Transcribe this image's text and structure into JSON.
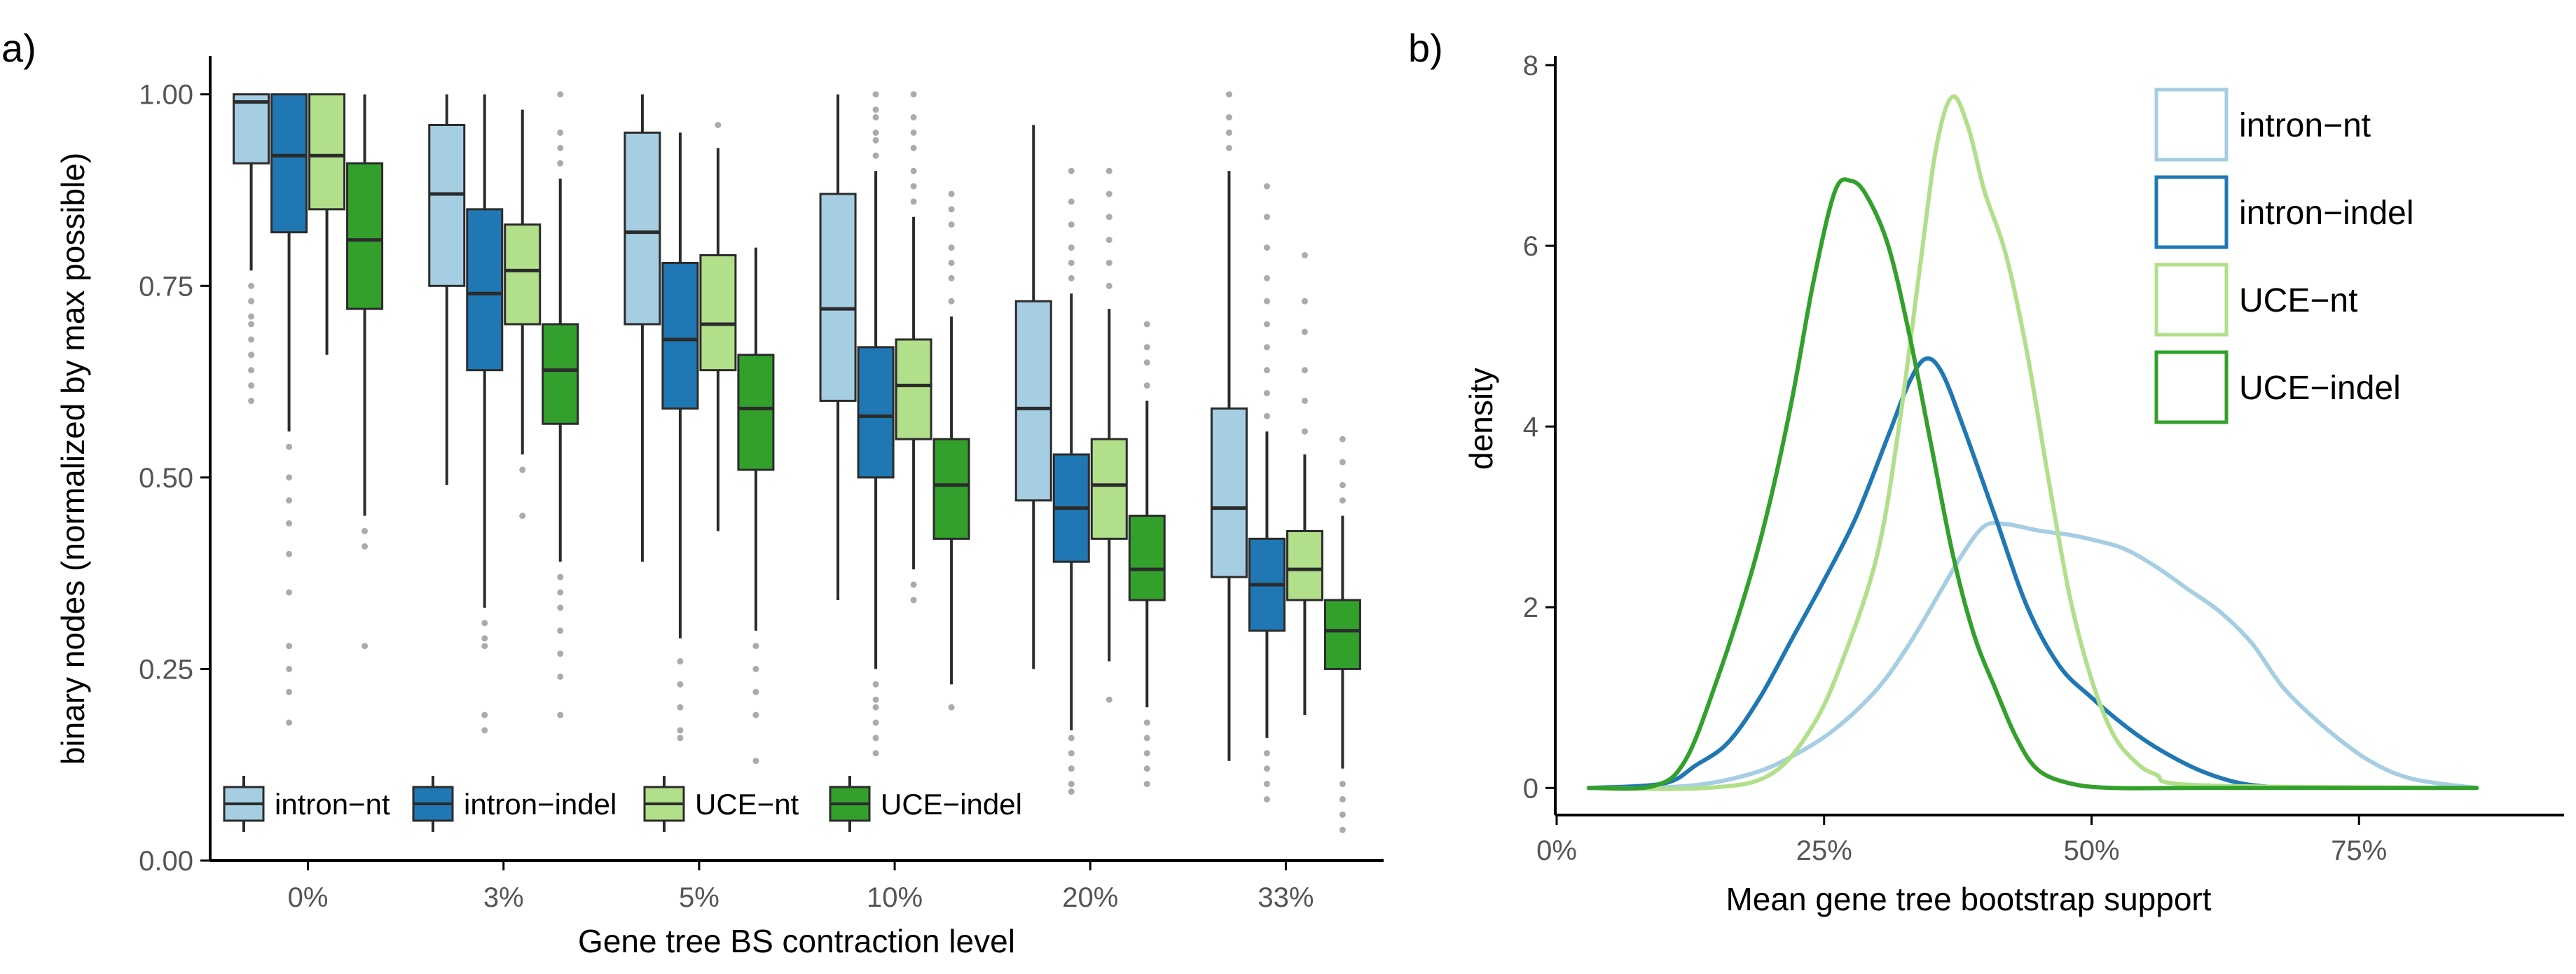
{
  "colors": {
    "intron_nt": "#a6cee3",
    "intron_indel": "#1f78b4",
    "uce_nt": "#b2df8a",
    "uce_indel": "#33a02c",
    "box_stroke": "#2b2b2b",
    "outlier": "#888888"
  },
  "chart_data": [
    {
      "panel_label": "a)",
      "type": "boxplot",
      "xlabel": "Gene tree BS contraction level",
      "ylabel": "binary nodes (normalized by max possible)",
      "ylim": [
        0,
        1.05
      ],
      "yticks": [
        0.0,
        0.25,
        0.5,
        0.75,
        1.0
      ],
      "ytick_labels": [
        "0.00",
        "0.25",
        "0.50",
        "0.75",
        "1.00"
      ],
      "categories": [
        "0%",
        "3%",
        "5%",
        "10%",
        "20%",
        "33%"
      ],
      "legend": {
        "position": "bottom-left",
        "entries": [
          "intron−nt",
          "intron−indel",
          "UCE−nt",
          "UCE−indel"
        ]
      },
      "series": [
        {
          "name": "intron-nt",
          "color_key": "intron_nt",
          "boxes": [
            {
              "min": 0.77,
              "q1": 0.91,
              "median": 0.99,
              "q3": 1.0,
              "max": 1.0,
              "outliers": [
                0.75,
                0.73,
                0.71,
                0.7,
                0.68,
                0.66,
                0.64,
                0.62,
                0.6
              ]
            },
            {
              "min": 0.49,
              "q1": 0.75,
              "median": 0.87,
              "q3": 0.96,
              "max": 1.0,
              "outliers": []
            },
            {
              "min": 0.39,
              "q1": 0.7,
              "median": 0.82,
              "q3": 0.95,
              "max": 1.0,
              "outliers": []
            },
            {
              "min": 0.34,
              "q1": 0.6,
              "median": 0.72,
              "q3": 0.87,
              "max": 1.0,
              "outliers": []
            },
            {
              "min": 0.25,
              "q1": 0.47,
              "median": 0.59,
              "q3": 0.73,
              "max": 0.96,
              "outliers": []
            },
            {
              "min": 0.13,
              "q1": 0.37,
              "median": 0.46,
              "q3": 0.59,
              "max": 0.9,
              "outliers": [
                0.93,
                0.95,
                0.97,
                1.0
              ]
            }
          ]
        },
        {
          "name": "intron-indel",
          "color_key": "intron_indel",
          "boxes": [
            {
              "min": 0.56,
              "q1": 0.82,
              "median": 0.92,
              "q3": 1.0,
              "max": 1.0,
              "outliers": [
                0.54,
                0.5,
                0.47,
                0.44,
                0.4,
                0.35,
                0.28,
                0.25,
                0.22,
                0.18
              ]
            },
            {
              "min": 0.33,
              "q1": 0.64,
              "median": 0.74,
              "q3": 0.85,
              "max": 1.0,
              "outliers": [
                0.31,
                0.29,
                0.28,
                0.19,
                0.17
              ]
            },
            {
              "min": 0.29,
              "q1": 0.59,
              "median": 0.68,
              "q3": 0.78,
              "max": 0.95,
              "outliers": [
                0.26,
                0.23,
                0.2,
                0.17,
                0.16
              ]
            },
            {
              "min": 0.25,
              "q1": 0.5,
              "median": 0.58,
              "q3": 0.67,
              "max": 0.9,
              "outliers": [
                0.92,
                0.94,
                0.95,
                0.97,
                0.98,
                1.0,
                0.23,
                0.21,
                0.2,
                0.18,
                0.16,
                0.14
              ]
            },
            {
              "min": 0.17,
              "q1": 0.39,
              "median": 0.46,
              "q3": 0.53,
              "max": 0.74,
              "outliers": [
                0.76,
                0.78,
                0.8,
                0.83,
                0.86,
                0.9,
                0.16,
                0.14,
                0.12,
                0.1,
                0.09
              ]
            },
            {
              "min": 0.16,
              "q1": 0.3,
              "median": 0.36,
              "q3": 0.42,
              "max": 0.56,
              "outliers": [
                0.58,
                0.61,
                0.64,
                0.67,
                0.7,
                0.73,
                0.76,
                0.8,
                0.84,
                0.88,
                0.14,
                0.12,
                0.1,
                0.08
              ]
            }
          ]
        },
        {
          "name": "UCE-nt",
          "color_key": "uce_nt",
          "boxes": [
            {
              "min": 0.66,
              "q1": 0.85,
              "median": 0.92,
              "q3": 1.0,
              "max": 1.0,
              "outliers": []
            },
            {
              "min": 0.53,
              "q1": 0.7,
              "median": 0.77,
              "q3": 0.83,
              "max": 0.98,
              "outliers": [
                0.51,
                0.45
              ]
            },
            {
              "min": 0.43,
              "q1": 0.64,
              "median": 0.7,
              "q3": 0.79,
              "max": 0.93,
              "outliers": [
                0.96
              ]
            },
            {
              "min": 0.38,
              "q1": 0.55,
              "median": 0.62,
              "q3": 0.68,
              "max": 0.84,
              "outliers": [
                0.86,
                0.88,
                0.9,
                0.93,
                0.95,
                0.97,
                1.0,
                0.36,
                0.34
              ]
            },
            {
              "min": 0.26,
              "q1": 0.42,
              "median": 0.49,
              "q3": 0.55,
              "max": 0.72,
              "outliers": [
                0.75,
                0.78,
                0.81,
                0.84,
                0.87,
                0.9,
                0.21
              ]
            },
            {
              "min": 0.19,
              "q1": 0.34,
              "median": 0.38,
              "q3": 0.43,
              "max": 0.53,
              "outliers": [
                0.56,
                0.6,
                0.64,
                0.69,
                0.73,
                0.79
              ]
            }
          ]
        },
        {
          "name": "UCE-indel",
          "color_key": "uce_indel",
          "boxes": [
            {
              "min": 0.45,
              "q1": 0.72,
              "median": 0.81,
              "q3": 0.91,
              "max": 1.0,
              "outliers": [
                0.43,
                0.41,
                0.28
              ]
            },
            {
              "min": 0.39,
              "q1": 0.57,
              "median": 0.64,
              "q3": 0.7,
              "max": 0.89,
              "outliers": [
                0.91,
                0.93,
                0.95,
                1.0,
                0.37,
                0.35,
                0.33,
                0.3,
                0.27,
                0.24,
                0.19
              ]
            },
            {
              "min": 0.3,
              "q1": 0.51,
              "median": 0.59,
              "q3": 0.66,
              "max": 0.8,
              "outliers": [
                0.28,
                0.25,
                0.22,
                0.19,
                0.13
              ]
            },
            {
              "min": 0.23,
              "q1": 0.42,
              "median": 0.49,
              "q3": 0.55,
              "max": 0.71,
              "outliers": [
                0.73,
                0.76,
                0.78,
                0.8,
                0.83,
                0.85,
                0.87,
                0.2
              ]
            },
            {
              "min": 0.2,
              "q1": 0.34,
              "median": 0.38,
              "q3": 0.45,
              "max": 0.6,
              "outliers": [
                0.62,
                0.65,
                0.67,
                0.7,
                0.18,
                0.16,
                0.14,
                0.12,
                0.1
              ]
            },
            {
              "min": 0.12,
              "q1": 0.25,
              "median": 0.3,
              "q3": 0.34,
              "max": 0.45,
              "outliers": [
                0.47,
                0.49,
                0.52,
                0.55,
                0.1,
                0.08,
                0.06,
                0.04
              ]
            }
          ]
        }
      ]
    },
    {
      "panel_label": "b)",
      "type": "line",
      "subtype": "density",
      "xlabel": "Mean gene tree bootstrap support",
      "ylabel": "density",
      "xlim": [
        0,
        0.9
      ],
      "ylim": [
        -0.3,
        8.0
      ],
      "xticks": [
        0,
        0.25,
        0.5,
        0.75
      ],
      "xtick_labels": [
        "0%",
        "25%",
        "50%",
        "75%"
      ],
      "yticks": [
        0,
        2,
        4,
        6,
        8
      ],
      "ytick_labels": [
        "0",
        "2",
        "4",
        "6",
        "8"
      ],
      "legend": {
        "position": "top-right",
        "entries": [
          "intron−nt",
          "intron−indel",
          "UCE−nt",
          "UCE−indel"
        ]
      },
      "series": [
        {
          "name": "intron-nt",
          "color_key": "intron_nt",
          "x": [
            0.03,
            0.12,
            0.18,
            0.22,
            0.26,
            0.3,
            0.33,
            0.36,
            0.38,
            0.4,
            0.42,
            0.45,
            0.48,
            0.5,
            0.53,
            0.56,
            0.59,
            0.62,
            0.65,
            0.68,
            0.72,
            0.76,
            0.8,
            0.86
          ],
          "y": [
            0,
            0.02,
            0.15,
            0.35,
            0.65,
            1.1,
            1.6,
            2.2,
            2.6,
            2.9,
            2.92,
            2.85,
            2.8,
            2.75,
            2.65,
            2.45,
            2.2,
            1.95,
            1.6,
            1.1,
            0.65,
            0.3,
            0.1,
            0
          ]
        },
        {
          "name": "intron-indel",
          "color_key": "intron_indel",
          "x": [
            0.03,
            0.1,
            0.13,
            0.16,
            0.19,
            0.22,
            0.25,
            0.28,
            0.31,
            0.33,
            0.345,
            0.36,
            0.38,
            0.41,
            0.44,
            0.47,
            0.5,
            0.53,
            0.56,
            0.6,
            0.64,
            0.68
          ],
          "y": [
            0,
            0.05,
            0.25,
            0.5,
            1.0,
            1.65,
            2.3,
            3.0,
            3.9,
            4.5,
            4.75,
            4.6,
            4.0,
            3.0,
            2.0,
            1.35,
            1.0,
            0.7,
            0.45,
            0.2,
            0.05,
            0
          ]
        },
        {
          "name": "UCE-nt",
          "color_key": "uce_nt",
          "x": [
            0.03,
            0.14,
            0.2,
            0.24,
            0.27,
            0.3,
            0.32,
            0.34,
            0.355,
            0.37,
            0.385,
            0.4,
            0.42,
            0.44,
            0.46,
            0.48,
            0.5,
            0.52,
            0.54,
            0.56,
            0.6,
            0.86
          ],
          "y": [
            0,
            0.0,
            0.15,
            0.7,
            1.5,
            2.6,
            4.0,
            5.8,
            7.1,
            7.65,
            7.3,
            6.6,
            5.9,
            4.8,
            3.4,
            2.1,
            1.2,
            0.6,
            0.3,
            0.15,
            0.03,
            0
          ]
        },
        {
          "name": "UCE-indel",
          "color_key": "uce_indel",
          "x": [
            0.03,
            0.09,
            0.12,
            0.15,
            0.18,
            0.2,
            0.22,
            0.24,
            0.26,
            0.275,
            0.29,
            0.31,
            0.33,
            0.35,
            0.37,
            0.39,
            0.41,
            0.43,
            0.45,
            0.48,
            0.52,
            0.6,
            0.86
          ],
          "y": [
            0,
            0.02,
            0.3,
            1.2,
            2.3,
            3.2,
            4.3,
            5.6,
            6.6,
            6.72,
            6.55,
            6.0,
            5.0,
            3.8,
            2.6,
            1.7,
            1.1,
            0.55,
            0.2,
            0.05,
            0.0,
            0.0,
            0
          ]
        }
      ]
    }
  ]
}
